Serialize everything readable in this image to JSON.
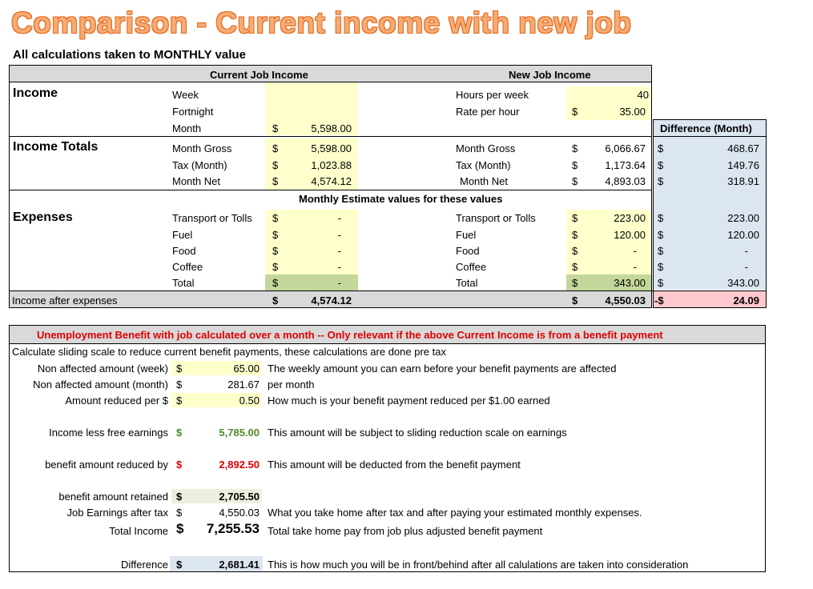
{
  "title": "Comparison - Current income with new job",
  "subtitle": "All calculations taken to MONTHLY value",
  "headers": {
    "current": "Current Job Income",
    "new": "New Job Income",
    "difference": "Difference (Month)",
    "monthly_estimate": "Monthly Estimate values for these values"
  },
  "sections": {
    "income": "Income",
    "income_totals": "Income Totals",
    "expenses": "Expenses"
  },
  "current_income": {
    "labels": [
      "Week",
      "Fortnight",
      "Month"
    ],
    "month_value": "5,598.00"
  },
  "new_income": {
    "hours_label": "Hours per week",
    "hours_value": "40",
    "rate_label": "Rate per hour",
    "rate_value": "35.00"
  },
  "totals": {
    "labels": [
      "Month Gross",
      "Tax (Month)",
      "Month Net"
    ],
    "current": [
      "5,598.00",
      "1,023.88",
      "4,574.12"
    ],
    "new": [
      "6,066.67",
      "1,173.64",
      "4,893.03"
    ],
    "difference": [
      "468.67",
      "149.76",
      "318.91"
    ]
  },
  "expenses": {
    "labels": [
      "Transport or Tolls",
      "Fuel",
      "Food",
      "Coffee",
      "Total"
    ],
    "current": [
      "-",
      "-",
      "-",
      "-",
      "-"
    ],
    "new": [
      "223.00",
      "120.00",
      "-",
      "-",
      "343.00"
    ],
    "difference": [
      "223.00",
      "120.00",
      "-",
      "-",
      "343.00"
    ]
  },
  "after_expenses": {
    "label": "Income after expenses",
    "current": "4,574.12",
    "new": "4,550.03",
    "diff_sign": "-$",
    "difference": "24.09"
  },
  "currency": "$",
  "benefit": {
    "title": "Unemployment Benefit with job calculated over a month -- Only relevant if the above Current Income is from a benefit payment",
    "intro": "Calculate sliding scale to reduce current benefit payments, these calculations are done pre tax",
    "rows": [
      {
        "label": "Non affected amount (week)",
        "value": "65.00",
        "note": "The weekly amount you can earn before your benefit payments are affected"
      },
      {
        "label": "Non affected amount (month)",
        "value": "281.67",
        "note": "per month"
      },
      {
        "label": "Amount reduced per $",
        "value": "0.50",
        "note": "How much is your benefit payment reduced per $1.00 earned"
      },
      {
        "label": "Income less free earnings",
        "value": "5,785.00",
        "note": "This amount will be subject to sliding reduction scale on earnings"
      },
      {
        "label": "benefit amount reduced by",
        "value": "2,892.50",
        "note": "This amount will be deducted from the benefit payment"
      },
      {
        "label": "benefit amount retained",
        "value": "2,705.50",
        "note": ""
      },
      {
        "label": "Job Earnings after tax",
        "value": "4,550.03",
        "note": "What you take home after tax and after paying your estimated monthly expenses."
      },
      {
        "label": "Total Income",
        "value": "7,255.53",
        "note": "Total take home pay from job plus adjusted benefit payment"
      },
      {
        "label": "Difference",
        "value": "2,681.41",
        "note": "This is how much you will be in front/behind after all calulations are taken into consideration"
      }
    ]
  },
  "colors": {
    "input_yellow": "#ffffcc",
    "diff_blue": "#dce6f1",
    "header_gray": "#d9d9d9",
    "total_green": "#c4d79b",
    "neg_pink": "#ffc7ce",
    "green_text": "#4f8a2b",
    "red_text": "#e00000",
    "title_orange": "#f7ab73"
  }
}
